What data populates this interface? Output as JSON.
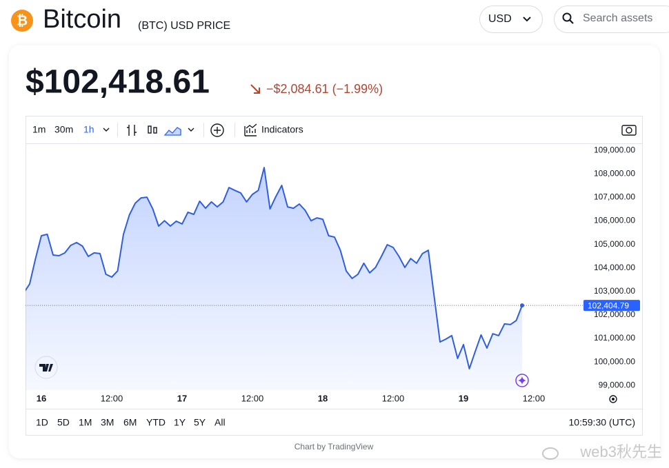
{
  "header": {
    "icon": "₿",
    "title": "Bitcoin",
    "subtitle": "(BTC) USD PRICE",
    "currency": "USD",
    "search_placeholder": "Search assets"
  },
  "price": {
    "value": "$102,418.61",
    "change": "−$2,084.61 (−1.99%)"
  },
  "toolbar": {
    "intervals": [
      "1m",
      "30m",
      "1h"
    ],
    "indicators": "Indicators"
  },
  "chart_data": {
    "type": "line",
    "color": "#2f5de0",
    "categories": [
      null,
      null,
      null,
      "16",
      null,
      null,
      null,
      null,
      null,
      null,
      null,
      null,
      null,
      null,
      null,
      "12:00",
      null,
      null,
      null,
      null,
      null,
      null,
      null,
      null,
      null,
      null,
      null,
      "17",
      null,
      null,
      null,
      null,
      null,
      null,
      null,
      null,
      null,
      null,
      null,
      "12:00",
      null,
      null,
      null,
      null,
      null,
      null,
      null,
      null,
      null,
      null,
      null,
      "18",
      null,
      null,
      null,
      null,
      null,
      null,
      null,
      null,
      null,
      null,
      null,
      "12:00",
      null,
      null,
      null,
      null,
      null,
      null,
      null,
      null,
      null,
      null,
      null,
      "19",
      null,
      null,
      null,
      null,
      null,
      null,
      null,
      null,
      null,
      null,
      null,
      "12:00"
    ],
    "values": [
      102940,
      103320,
      104400,
      105370,
      105430,
      104550,
      104520,
      104640,
      104960,
      105080,
      104930,
      104490,
      104640,
      104610,
      103730,
      103610,
      103870,
      105430,
      106250,
      106750,
      106980,
      107010,
      106510,
      105780,
      106010,
      105780,
      105990,
      105870,
      106370,
      106280,
      106840,
      106540,
      106810,
      106600,
      106810,
      107420,
      107300,
      107190,
      106810,
      107130,
      107300,
      108270,
      106510,
      107040,
      107510,
      106600,
      106540,
      106720,
      106450,
      106010,
      106130,
      106070,
      105370,
      105310,
      104750,
      103870,
      103550,
      103730,
      104200,
      103790,
      104020,
      104490,
      104990,
      104870,
      104490,
      104020,
      104400,
      104200,
      104610,
      104750,
      102790,
      100850,
      100970,
      101120,
      100150,
      100740,
      99710,
      100440,
      101150,
      100590,
      101200,
      101120,
      101620,
      101590,
      101760,
      102404.79,
      null,
      null
    ],
    "ylim": [
      98800,
      109300
    ],
    "yticks": [
      {
        "value": 99000,
        "label": "99,000.00"
      },
      {
        "value": 100000,
        "label": "100,000.00"
      },
      {
        "value": 101000,
        "label": "101,000.00"
      },
      {
        "value": 102000,
        "label": "102,000.00"
      },
      {
        "value": 103000,
        "label": "103,000.00"
      },
      {
        "value": 104000,
        "label": "104,000.00"
      },
      {
        "value": 105000,
        "label": "105,000.00"
      },
      {
        "value": 106000,
        "label": "106,000.00"
      },
      {
        "value": 107000,
        "label": "107,000.00"
      },
      {
        "value": 108000,
        "label": "108,000.00"
      },
      {
        "value": 109000,
        "label": "109,000.00"
      }
    ],
    "last_price": {
      "value": 102404.79,
      "label": "102,404.79"
    },
    "grid": false
  },
  "ranges": [
    "1D",
    "5D",
    "1M",
    "3M",
    "6M",
    "YTD",
    "1Y",
    "5Y",
    "All"
  ],
  "clock": "10:59:30 (UTC)",
  "credit": "Chart by TradingView",
  "watermark": "web3秋先生"
}
